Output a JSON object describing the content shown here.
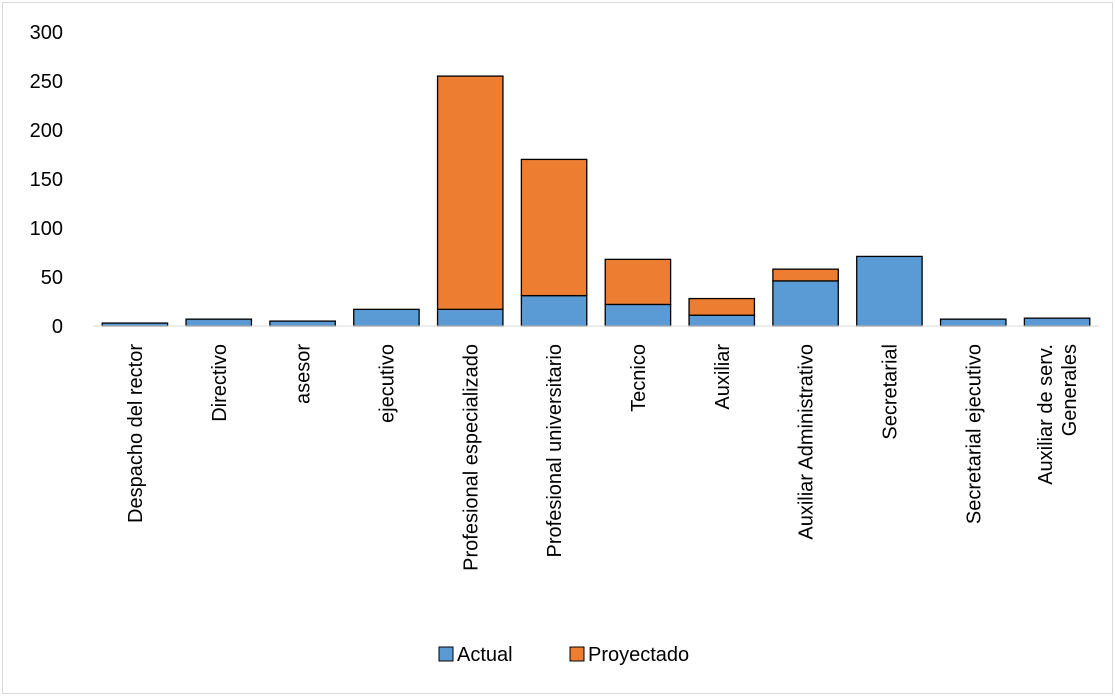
{
  "chart_data": {
    "type": "bar",
    "stacked": true,
    "categories": [
      [
        "Despacho del rector"
      ],
      [
        "Directivo"
      ],
      [
        "asesor"
      ],
      [
        "ejecutivo"
      ],
      [
        "Profesional especializado"
      ],
      [
        "Profesional universitario"
      ],
      [
        "Tecnico"
      ],
      [
        "Auxiliar"
      ],
      [
        "Auxiliar Administrativo"
      ],
      [
        "Secretarial"
      ],
      [
        "Secretarial ejecutivo"
      ],
      [
        "Auxiliar de serv.",
        "Generales"
      ]
    ],
    "series": [
      {
        "name": "Actual",
        "color": "#5b9bd5",
        "values": [
          3,
          7,
          5,
          17,
          17,
          31,
          22,
          11,
          46,
          71,
          7,
          8
        ]
      },
      {
        "name": "Proyectado",
        "color": "#ed7d31",
        "values": [
          0,
          0,
          0,
          0,
          238,
          139,
          46,
          17,
          12,
          0,
          0,
          0
        ]
      }
    ],
    "yticks": [
      "0",
      "50",
      "100",
      "150",
      "200",
      "250",
      "300"
    ],
    "ylim": [
      0,
      300
    ],
    "grid": false,
    "legend": "bottom",
    "bar_outline": "#000000"
  }
}
